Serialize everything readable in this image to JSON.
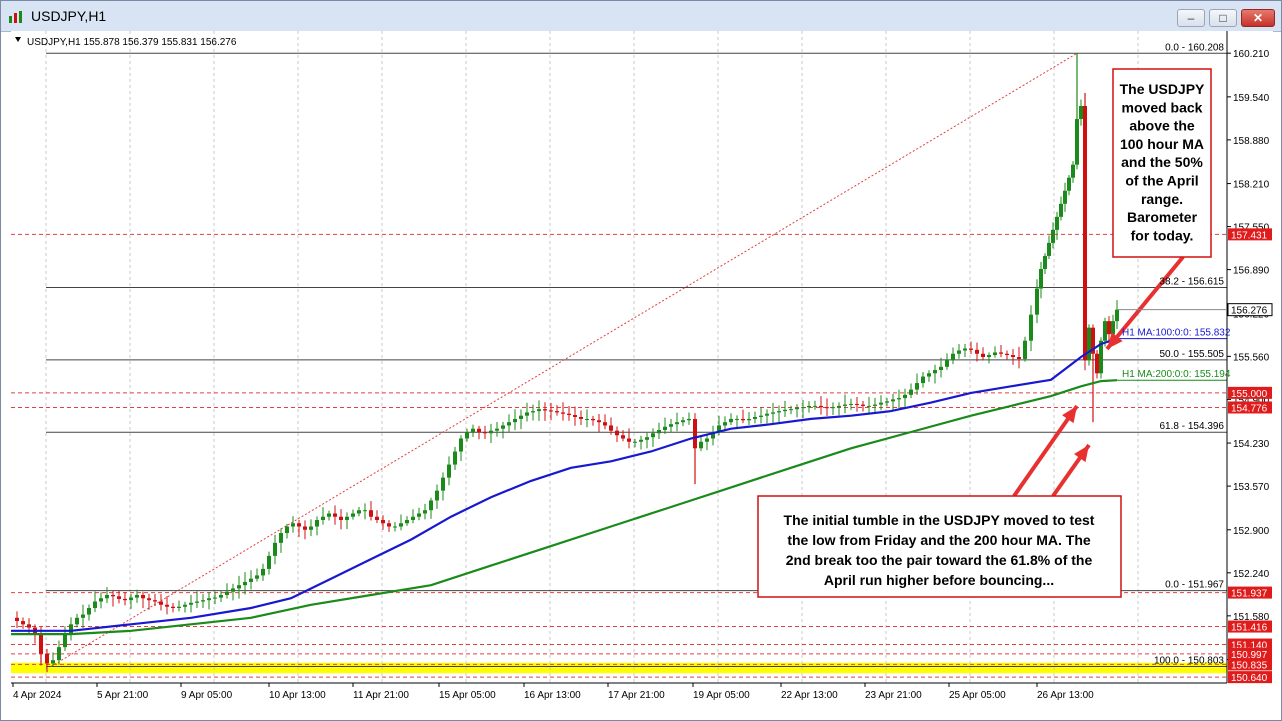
{
  "window": {
    "title": "USDJPY,H1",
    "min_icon": "minimize-icon",
    "max_icon": "maximize-icon",
    "close_icon": "close-icon"
  },
  "chart_data": {
    "type": "candlestick",
    "header": "USDJPY,H1  155.878 156.379 155.831 156.276",
    "ylim": [
      150.55,
      160.55
    ],
    "price_ticks": [
      "160.210",
      "159.540",
      "158.880",
      "158.210",
      "157.550",
      "156.890",
      "156.220",
      "155.560",
      "154.900",
      "154.230",
      "153.570",
      "152.900",
      "152.240",
      "151.580",
      "150.910"
    ],
    "time_ticks": [
      "4 Apr 2024",
      "5 Apr 21:00",
      "9 Apr 05:00",
      "10 Apr 13:00",
      "11 Apr 21:00",
      "15 Apr 05:00",
      "16 Apr 13:00",
      "17 Apr 21:00",
      "19 Apr 05:00",
      "22 Apr 13:00",
      "23 Apr 21:00",
      "25 Apr 05:00",
      "26 Apr 13:00"
    ],
    "ohlc_path": [
      [
        0,
        151.55
      ],
      [
        6,
        151.5
      ],
      [
        12,
        151.45
      ],
      [
        18,
        151.4
      ],
      [
        24,
        151.3
      ],
      [
        30,
        151.0
      ],
      [
        36,
        150.85
      ],
      [
        42,
        150.9
      ],
      [
        48,
        151.1
      ],
      [
        54,
        151.3
      ],
      [
        60,
        151.45
      ],
      [
        66,
        151.55
      ],
      [
        72,
        151.6
      ],
      [
        78,
        151.7
      ],
      [
        84,
        151.8
      ],
      [
        90,
        151.85
      ],
      [
        96,
        151.9
      ],
      [
        102,
        151.88
      ],
      [
        108,
        151.84
      ],
      [
        114,
        151.82
      ],
      [
        120,
        151.86
      ],
      [
        126,
        151.9
      ],
      [
        132,
        151.85
      ],
      [
        138,
        151.82
      ],
      [
        144,
        151.8
      ],
      [
        150,
        151.75
      ],
      [
        156,
        151.72
      ],
      [
        162,
        151.7
      ],
      [
        168,
        151.72
      ],
      [
        174,
        151.75
      ],
      [
        180,
        151.78
      ],
      [
        186,
        151.8
      ],
      [
        192,
        151.82
      ],
      [
        198,
        151.85
      ],
      [
        204,
        151.86
      ],
      [
        210,
        151.9
      ],
      [
        216,
        151.95
      ],
      [
        222,
        152.0
      ],
      [
        228,
        152.05
      ],
      [
        234,
        152.1
      ],
      [
        240,
        152.15
      ],
      [
        246,
        152.2
      ],
      [
        252,
        152.3
      ],
      [
        258,
        152.5
      ],
      [
        264,
        152.7
      ],
      [
        270,
        152.85
      ],
      [
        276,
        152.95
      ],
      [
        282,
        153.0
      ],
      [
        288,
        152.95
      ],
      [
        294,
        152.9
      ],
      [
        300,
        152.95
      ],
      [
        306,
        153.05
      ],
      [
        312,
        153.1
      ],
      [
        318,
        153.15
      ],
      [
        324,
        153.1
      ],
      [
        330,
        153.05
      ],
      [
        336,
        153.1
      ],
      [
        342,
        153.15
      ],
      [
        348,
        153.2
      ],
      [
        354,
        153.2
      ],
      [
        360,
        153.1
      ],
      [
        366,
        153.05
      ],
      [
        372,
        153.0
      ],
      [
        378,
        152.95
      ],
      [
        384,
        152.95
      ],
      [
        390,
        153.0
      ],
      [
        396,
        153.05
      ],
      [
        402,
        153.1
      ],
      [
        408,
        153.15
      ],
      [
        414,
        153.2
      ],
      [
        420,
        153.35
      ],
      [
        426,
        153.5
      ],
      [
        432,
        153.7
      ],
      [
        438,
        153.9
      ],
      [
        444,
        154.1
      ],
      [
        450,
        154.3
      ],
      [
        456,
        154.4
      ],
      [
        462,
        154.45
      ],
      [
        468,
        154.4
      ],
      [
        474,
        154.38
      ],
      [
        480,
        154.42
      ],
      [
        486,
        154.45
      ],
      [
        492,
        154.5
      ],
      [
        498,
        154.55
      ],
      [
        504,
        154.6
      ],
      [
        510,
        154.65
      ],
      [
        516,
        154.7
      ],
      [
        522,
        154.72
      ],
      [
        528,
        154.75
      ],
      [
        534,
        154.73
      ],
      [
        540,
        154.72
      ],
      [
        546,
        154.7
      ],
      [
        552,
        154.68
      ],
      [
        558,
        154.66
      ],
      [
        564,
        154.63
      ],
      [
        570,
        154.6
      ],
      [
        576,
        154.6
      ],
      [
        582,
        154.58
      ],
      [
        588,
        154.55
      ],
      [
        594,
        154.5
      ],
      [
        600,
        154.42
      ],
      [
        606,
        154.35
      ],
      [
        612,
        154.3
      ],
      [
        618,
        154.25
      ],
      [
        624,
        154.25
      ],
      [
        630,
        154.28
      ],
      [
        636,
        154.32
      ],
      [
        642,
        154.38
      ],
      [
        648,
        154.43
      ],
      [
        654,
        154.48
      ],
      [
        660,
        154.52
      ],
      [
        666,
        154.55
      ],
      [
        672,
        154.58
      ],
      [
        678,
        154.6
      ],
      [
        684,
        154.15
      ],
      [
        690,
        154.25
      ],
      [
        696,
        154.3
      ],
      [
        702,
        154.4
      ],
      [
        708,
        154.5
      ],
      [
        714,
        154.55
      ],
      [
        720,
        154.6
      ],
      [
        726,
        154.6
      ],
      [
        732,
        154.58
      ],
      [
        738,
        154.6
      ],
      [
        744,
        154.63
      ],
      [
        750,
        154.65
      ],
      [
        756,
        154.68
      ],
      [
        762,
        154.7
      ],
      [
        768,
        154.72
      ],
      [
        774,
        154.74
      ],
      [
        780,
        154.75
      ],
      [
        786,
        154.77
      ],
      [
        792,
        154.78
      ],
      [
        798,
        154.8
      ],
      [
        804,
        154.8
      ],
      [
        810,
        154.78
      ],
      [
        816,
        154.77
      ],
      [
        822,
        154.78
      ],
      [
        828,
        154.8
      ],
      [
        834,
        154.82
      ],
      [
        840,
        154.83
      ],
      [
        846,
        154.82
      ],
      [
        852,
        154.8
      ],
      [
        858,
        154.8
      ],
      [
        864,
        154.82
      ],
      [
        870,
        154.85
      ],
      [
        876,
        154.87
      ],
      [
        882,
        154.9
      ],
      [
        888,
        154.92
      ],
      [
        894,
        154.97
      ],
      [
        900,
        155.05
      ],
      [
        906,
        155.15
      ],
      [
        912,
        155.25
      ],
      [
        918,
        155.3
      ],
      [
        924,
        155.35
      ],
      [
        930,
        155.4
      ],
      [
        936,
        155.5
      ],
      [
        942,
        155.6
      ],
      [
        948,
        155.65
      ],
      [
        954,
        155.68
      ],
      [
        960,
        155.66
      ],
      [
        966,
        155.6
      ],
      [
        972,
        155.55
      ],
      [
        978,
        155.58
      ],
      [
        984,
        155.62
      ],
      [
        990,
        155.6
      ],
      [
        996,
        155.58
      ],
      [
        1002,
        155.55
      ],
      [
        1008,
        155.52
      ],
      [
        1014,
        155.8
      ],
      [
        1020,
        156.2
      ],
      [
        1026,
        156.6
      ],
      [
        1030,
        156.9
      ],
      [
        1034,
        157.1
      ],
      [
        1038,
        157.3
      ],
      [
        1042,
        157.5
      ],
      [
        1046,
        157.7
      ],
      [
        1050,
        157.9
      ],
      [
        1054,
        158.1
      ],
      [
        1058,
        158.3
      ],
      [
        1062,
        158.5
      ],
      [
        1066,
        159.2
      ],
      [
        1070,
        159.4
      ],
      [
        1074,
        155.5
      ],
      [
        1078,
        156.0
      ],
      [
        1082,
        155.6
      ],
      [
        1086,
        155.3
      ],
      [
        1090,
        155.8
      ],
      [
        1094,
        156.1
      ],
      [
        1098,
        155.9
      ],
      [
        1102,
        156.1
      ],
      [
        1106,
        156.276
      ]
    ],
    "ma100": {
      "label": "H1 MA:100:0:0: 155.832",
      "color": "#1818d0",
      "points": [
        [
          0,
          151.35
        ],
        [
          60,
          151.35
        ],
        [
          120,
          151.45
        ],
        [
          180,
          151.55
        ],
        [
          240,
          151.7
        ],
        [
          280,
          151.85
        ],
        [
          320,
          152.15
        ],
        [
          360,
          152.45
        ],
        [
          400,
          152.75
        ],
        [
          440,
          153.1
        ],
        [
          480,
          153.4
        ],
        [
          520,
          153.65
        ],
        [
          560,
          153.85
        ],
        [
          600,
          153.95
        ],
        [
          640,
          154.1
        ],
        [
          680,
          154.3
        ],
        [
          720,
          154.45
        ],
        [
          760,
          154.52
        ],
        [
          800,
          154.6
        ],
        [
          840,
          154.65
        ],
        [
          880,
          154.72
        ],
        [
          920,
          154.85
        ],
        [
          960,
          155.0
        ],
        [
          1000,
          155.1
        ],
        [
          1040,
          155.2
        ],
        [
          1070,
          155.55
        ],
        [
          1090,
          155.75
        ],
        [
          1106,
          155.832
        ]
      ]
    },
    "ma200": {
      "label": "H1 MA:200:0:0: 155.194",
      "color": "#1a8a1a",
      "points": [
        [
          0,
          151.3
        ],
        [
          60,
          151.3
        ],
        [
          120,
          151.35
        ],
        [
          180,
          151.45
        ],
        [
          240,
          151.55
        ],
        [
          300,
          151.75
        ],
        [
          360,
          151.9
        ],
        [
          420,
          152.05
        ],
        [
          480,
          152.35
        ],
        [
          540,
          152.65
        ],
        [
          600,
          152.95
        ],
        [
          660,
          153.25
        ],
        [
          720,
          153.55
        ],
        [
          780,
          153.85
        ],
        [
          840,
          154.15
        ],
        [
          900,
          154.4
        ],
        [
          960,
          154.65
        ],
        [
          1000,
          154.8
        ],
        [
          1040,
          154.95
        ],
        [
          1070,
          155.1
        ],
        [
          1090,
          155.18
        ],
        [
          1106,
          155.194
        ]
      ]
    },
    "fib_levels": [
      {
        "label": "0.0 - 160.208",
        "price": 160.208,
        "color": "#555555"
      },
      {
        "label": "38.2 - 156.615",
        "price": 156.615,
        "color": "#555555"
      },
      {
        "label": "50.0 - 155.505",
        "price": 155.505,
        "color": "#555555"
      },
      {
        "label": "61.8 - 154.396",
        "price": 154.396,
        "color": "#555555"
      },
      {
        "label": "0.0 - 151.967",
        "price": 151.967,
        "color": "#555555"
      },
      {
        "label": "100.0 - 150.803",
        "price": 150.803,
        "color": "#555555"
      }
    ],
    "level_tags": [
      {
        "text": "157.431",
        "price": 157.431
      },
      {
        "text": "155.000",
        "price": 155.0
      },
      {
        "text": "154.776",
        "price": 154.776
      },
      {
        "text": "151.937",
        "price": 151.937
      },
      {
        "text": "151.416",
        "price": 151.416
      },
      {
        "text": "151.140",
        "price": 151.14
      },
      {
        "text": "150.997",
        "price": 150.997
      },
      {
        "text": "150.835",
        "price": 150.835
      },
      {
        "text": "150.640",
        "price": 150.64
      }
    ],
    "current_price": "156.276",
    "yellow_zone": [
      150.7,
      150.86
    ],
    "annotation_top": [
      "The USDJPY",
      "moved back",
      "above the",
      "100 hour MA",
      "and the 50%",
      "of the April",
      "range.",
      "Barometer",
      "for today."
    ],
    "annotation_bottom": [
      "The initial tumble in the USDJPY moved to test",
      "the low from Friday and the 200 hour MA. The",
      "2nd break too the pair toward the 61.8% of the",
      "April run higher before bouncing..."
    ],
    "colors": {
      "up": "#1a8a1a",
      "down": "#d01010",
      "tag": "#e01b1b",
      "box_border": "#d01010",
      "arrow": "#e83030"
    }
  }
}
